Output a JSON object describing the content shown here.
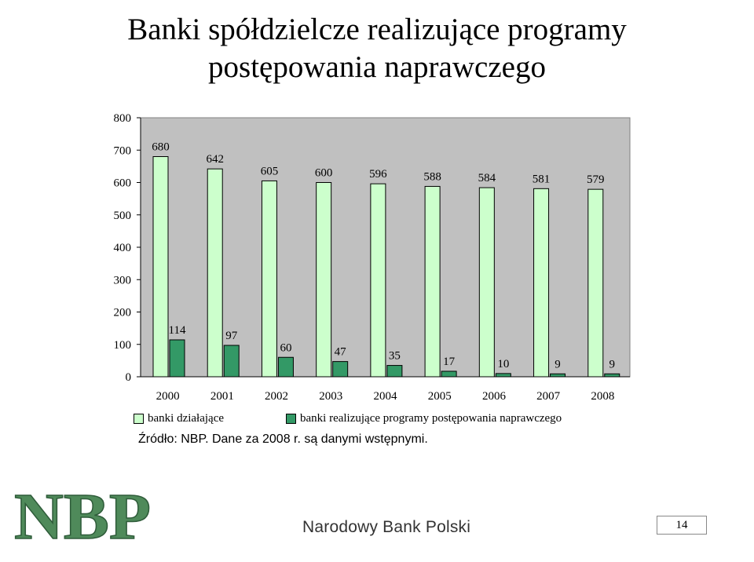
{
  "slide": {
    "title": "Banki spółdzielcze realizujące programy postępowania naprawczego",
    "source_note": "Źródło: NBP. Dane za 2008 r. są danymi wstępnymi.",
    "footer_text": "Narodowy Bank Polski",
    "logo_text": "NBP",
    "page_number": "14"
  },
  "colors": {
    "plot_bg": "#c0c0c0",
    "series_light": "#ccffcc",
    "series_dark": "#339966",
    "logo": "#4f8a5a"
  },
  "chart_data": {
    "type": "bar",
    "categories": [
      "2000",
      "2001",
      "2002",
      "2003",
      "2004",
      "2005",
      "2006",
      "2007",
      "2008"
    ],
    "series": [
      {
        "name": "banki działające",
        "values": [
          680,
          642,
          605,
          600,
          596,
          588,
          584,
          581,
          579
        ]
      },
      {
        "name": "banki realizujące programy postępowania naprawczego",
        "values": [
          114,
          97,
          60,
          47,
          35,
          17,
          10,
          9,
          9
        ]
      }
    ],
    "yticks": [
      "0",
      "100",
      "200",
      "300",
      "400",
      "500",
      "600",
      "700",
      "800"
    ],
    "ylim": [
      0,
      800
    ],
    "grid": false,
    "legend_position": "bottom"
  }
}
